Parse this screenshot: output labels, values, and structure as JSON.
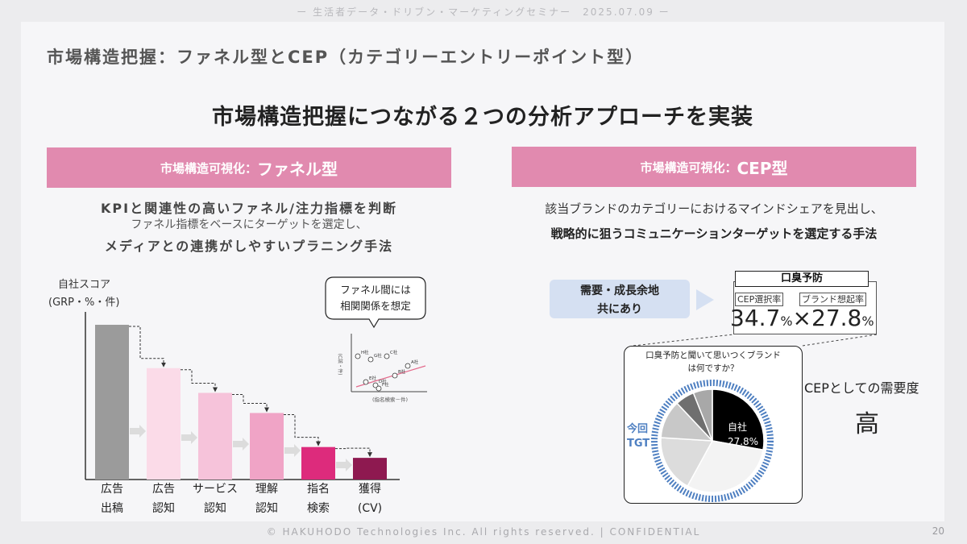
{
  "header": {
    "seminar": "ー 生活者データ・ドリブン・マーケティングセミナー　2025.07.09 ー"
  },
  "slide": {
    "title": "市場構造把握：ファネル型とCEP（カテゴリーエントリーポイント型）",
    "headline": "市場構造把握につながる２つの分析アプローチを実装"
  },
  "left": {
    "band_prefix": "市場構造可視化：",
    "band_title": "ファネル型",
    "desc_line1": "KPIと関連性の高いファネル/注力指標を判断",
    "desc_line2": "ファネル指標をベースにターゲットを選定し、",
    "desc_line3": "メディアとの連携がしやすいプラニング手法",
    "y_label_1": "自社スコア",
    "y_label_2": "(GRP・%・件)",
    "bubble_1": "ファネル間には",
    "bubble_2": "相関関係を想定",
    "scatter_xlabel": "(指名検索－件)",
    "scatter_ylabel": "(C該・件)",
    "scatter_points": [
      "H社",
      "G社",
      "C社",
      "A社",
      "E社",
      "D社",
      "B社",
      "F社"
    ],
    "categories": [
      {
        "line1": "広告",
        "line2": "出稿",
        "color": "#9b9b9b"
      },
      {
        "line1": "広告",
        "line2": "認知",
        "color": "#fbdbe8"
      },
      {
        "line1": "サービス",
        "line2": "認知",
        "color": "#f6c3da"
      },
      {
        "line1": "理解",
        "line2": "認知",
        "color": "#f0a4c6"
      },
      {
        "line1": "指名",
        "line2": "検索",
        "color": "#dd2b7c"
      },
      {
        "line1": "獲得",
        "line2": "(CV)",
        "color": "#8e1950"
      }
    ]
  },
  "right": {
    "band_prefix": "市場構造可視化：",
    "band_title": "CEP型",
    "desc_line1": "該当ブランドのカテゴリーにおけるマインドシェアを見出し、",
    "desc_line2": "戦略的に狙うコミュニケーションターゲットを選定する手法",
    "demand_line1": "需要・成長余地",
    "demand_line2": "共にあり",
    "box_title": "口臭予防",
    "box_label_1": "CEP選択率",
    "box_label_2": "ブランド想起率",
    "value_1": "34.7",
    "value_2": "27.8",
    "percent": "%",
    "times": "×",
    "question_1": "口臭予防と聞いて思いつくブランド",
    "question_2": "は何ですか？",
    "pie_label": "自社",
    "pie_value": "27.8%",
    "tgt_1": "今回",
    "tgt_2": "TGT",
    "cep_demand_label": "CEPとしての需要度",
    "cep_demand_value": "高"
  },
  "footer": {
    "copyright": "© HAKUHODO Technologies Inc. All rights  reserved. | CONFIDENTIAL",
    "page": "20"
  },
  "colors": {
    "accent_pink": "#e18aaf",
    "demand_box": "#d5e0f2",
    "tgt_blue": "#4e7fc1"
  },
  "chart_data": {
    "type": "bar",
    "categories": [
      "広告出稿",
      "広告認知",
      "サービス認知",
      "理解認知",
      "指名検索",
      "獲得(CV)"
    ],
    "values": [
      100,
      72,
      56,
      43,
      21,
      14
    ],
    "ylabel": "自社スコア (GRP・%・件)",
    "ylim": [
      0,
      100
    ]
  },
  "pie_data": {
    "type": "pie",
    "slices": [
      {
        "label": "自社",
        "value": 27.8,
        "color": "#000000"
      },
      {
        "label": "",
        "value": 30.2,
        "color": "#f3f3f3"
      },
      {
        "label": "",
        "value": 18,
        "color": "#dcdcdc"
      },
      {
        "label": "",
        "value": 12,
        "color": "#c8c8c8"
      },
      {
        "label": "",
        "value": 6,
        "color": "#6f6f6f"
      },
      {
        "label": "",
        "value": 6,
        "color": "#a8a8a8"
      }
    ]
  }
}
